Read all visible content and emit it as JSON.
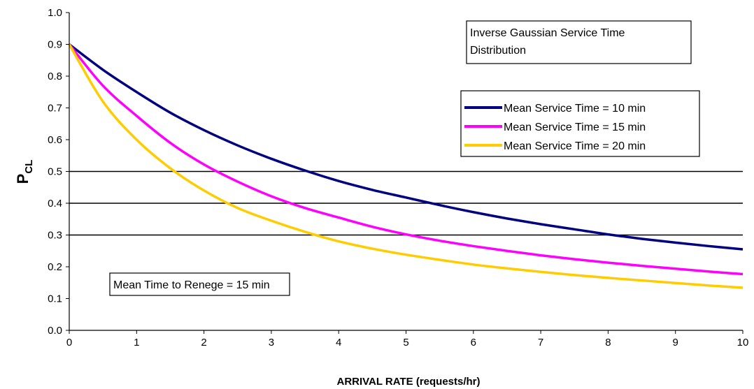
{
  "chart_data": {
    "type": "line",
    "xlabel": "ARRIVAL RATE (requests/hr)",
    "ylabel_main": "P",
    "ylabel_sub": "CL",
    "xlim": [
      0,
      10
    ],
    "ylim": [
      0,
      1.0
    ],
    "x_ticks": [
      "0",
      "1",
      "2",
      "3",
      "4",
      "5",
      "6",
      "7",
      "8",
      "9",
      "10"
    ],
    "y_ticks": [
      "0.0",
      "0.1",
      "0.2",
      "0.3",
      "0.4",
      "0.5",
      "0.6",
      "0.7",
      "0.8",
      "0.9",
      "1.0"
    ],
    "grid": false,
    "x": [
      0,
      0.5,
      1,
      1.5,
      2,
      2.5,
      3,
      3.5,
      4,
      4.5,
      5,
      5.5,
      6,
      6.5,
      7,
      7.5,
      8,
      8.5,
      9,
      9.5,
      10
    ],
    "series": [
      {
        "name": "Mean Service Time = 10 min",
        "color": "#000080",
        "values": [
          0.9,
          0.82,
          0.75,
          0.685,
          0.63,
          0.582,
          0.54,
          0.503,
          0.47,
          0.442,
          0.418,
          0.394,
          0.372,
          0.352,
          0.334,
          0.318,
          0.302,
          0.288,
          0.276,
          0.265,
          0.255
        ]
      },
      {
        "name": "Mean Service Time = 15 min",
        "color": "#ff00ff",
        "values": [
          0.9,
          0.77,
          0.675,
          0.59,
          0.522,
          0.468,
          0.422,
          0.385,
          0.355,
          0.326,
          0.302,
          0.282,
          0.265,
          0.25,
          0.236,
          0.224,
          0.213,
          0.203,
          0.194,
          0.185,
          0.177
        ]
      },
      {
        "name": "Mean Service Time = 20 min",
        "color": "#ffcc00",
        "values": [
          0.9,
          0.72,
          0.6,
          0.51,
          0.44,
          0.385,
          0.345,
          0.31,
          0.28,
          0.257,
          0.238,
          0.222,
          0.207,
          0.195,
          0.184,
          0.174,
          0.165,
          0.157,
          0.149,
          0.141,
          0.134
        ]
      }
    ],
    "reference_lines": [
      0.5,
      0.4,
      0.3
    ],
    "legend_position": "top-right",
    "annotations": {
      "top_box": [
        "Inverse Gaussian Service Time",
        "Distribution"
      ],
      "bottom_box": "Mean Time to Renege = 15 min"
    }
  }
}
